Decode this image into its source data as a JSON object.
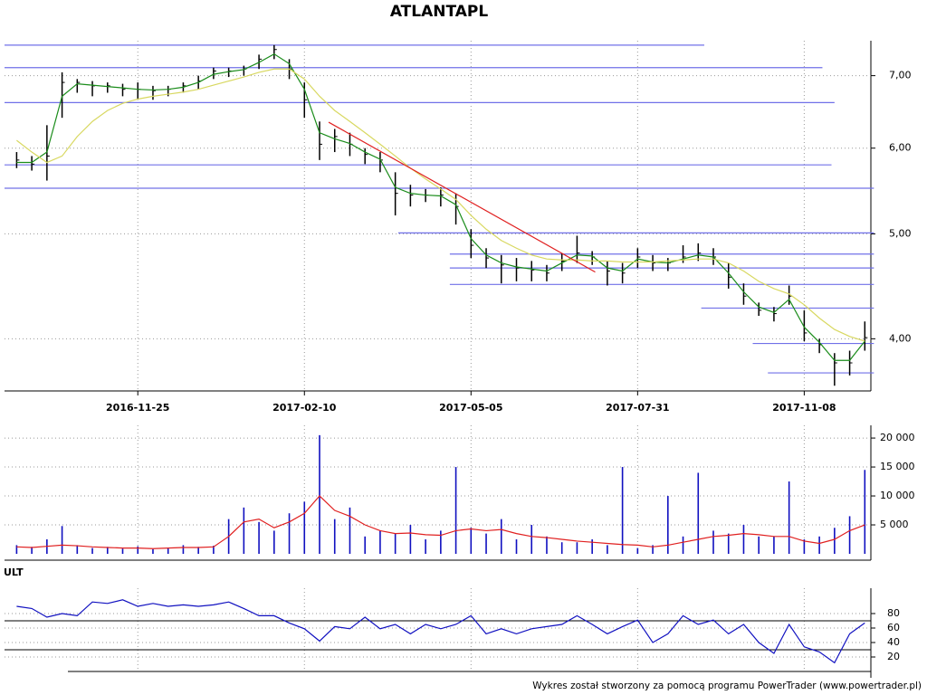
{
  "chart_data": [
    {
      "type": "ohlc",
      "title": "ATLANTAPL",
      "log_scale": true,
      "grid": true,
      "bar_color": "#000000",
      "x": [
        0,
        5,
        10,
        15,
        20,
        25,
        30,
        35,
        40,
        45,
        50,
        55,
        60,
        65,
        70,
        75,
        80,
        85,
        90,
        95,
        100,
        105,
        110,
        115,
        120,
        125,
        130,
        135,
        140,
        145,
        150,
        155,
        160,
        165,
        170,
        175,
        180,
        185,
        190,
        195,
        200,
        205,
        210,
        215,
        220,
        225,
        230,
        235,
        240,
        245,
        250,
        255,
        260,
        265,
        270,
        275,
        280
      ],
      "high": [
        5.95,
        5.9,
        6.3,
        7.05,
        6.95,
        6.92,
        6.9,
        6.88,
        6.9,
        6.85,
        6.85,
        6.9,
        7.0,
        7.12,
        7.12,
        7.15,
        7.32,
        7.47,
        7.25,
        6.9,
        6.35,
        6.25,
        6.2,
        6.0,
        5.95,
        5.7,
        5.55,
        5.5,
        5.52,
        5.45,
        5.05,
        4.85,
        4.78,
        4.75,
        4.72,
        4.68,
        4.8,
        4.98,
        4.82,
        4.72,
        4.7,
        4.85,
        4.78,
        4.75,
        4.88,
        4.9,
        4.85,
        4.7,
        4.5,
        4.32,
        4.28,
        4.48,
        4.25,
        4.0,
        3.88,
        3.9,
        4.15
      ],
      "low": [
        5.75,
        5.72,
        5.6,
        6.4,
        6.75,
        6.7,
        6.75,
        6.7,
        6.65,
        6.65,
        6.7,
        6.75,
        6.8,
        6.95,
        6.98,
        7.0,
        7.1,
        7.25,
        6.95,
        6.4,
        5.85,
        5.95,
        5.9,
        5.8,
        5.7,
        5.2,
        5.3,
        5.35,
        5.3,
        5.1,
        4.75,
        4.65,
        4.5,
        4.52,
        4.52,
        4.52,
        4.62,
        4.7,
        4.68,
        4.48,
        4.5,
        4.65,
        4.62,
        4.62,
        4.7,
        4.72,
        4.68,
        4.45,
        4.3,
        4.2,
        4.15,
        4.3,
        3.98,
        3.88,
        3.62,
        3.7,
        3.9
      ],
      "close": [
        5.85,
        5.8,
        5.9,
        6.9,
        6.9,
        6.85,
        6.85,
        6.8,
        6.8,
        6.78,
        6.8,
        6.85,
        6.92,
        7.07,
        7.07,
        7.1,
        7.25,
        7.4,
        7.1,
        6.65,
        6.05,
        6.15,
        6.05,
        5.92,
        5.85,
        5.45,
        5.43,
        5.43,
        5.43,
        5.3,
        4.88,
        4.75,
        4.68,
        4.65,
        4.63,
        4.6,
        4.72,
        4.8,
        4.76,
        4.62,
        4.6,
        4.76,
        4.7,
        4.7,
        4.76,
        4.8,
        4.76,
        4.56,
        4.38,
        4.25,
        4.22,
        4.38,
        4.05,
        3.95,
        3.8,
        3.8,
        4.01
      ],
      "lines": [
        {
          "color": "#1a8c1a",
          "values": [
            5.82,
            5.82,
            5.95,
            6.7,
            6.88,
            6.86,
            6.84,
            6.82,
            6.8,
            6.79,
            6.8,
            6.83,
            6.9,
            7.02,
            7.06,
            7.09,
            7.2,
            7.33,
            7.18,
            6.8,
            6.2,
            6.12,
            6.06,
            5.95,
            5.86,
            5.52,
            5.45,
            5.43,
            5.42,
            5.32,
            4.95,
            4.78,
            4.7,
            4.66,
            4.64,
            4.62,
            4.7,
            4.78,
            4.77,
            4.65,
            4.62,
            4.74,
            4.71,
            4.7,
            4.74,
            4.78,
            4.76,
            4.6,
            4.42,
            4.28,
            4.23,
            4.35,
            4.1,
            3.97,
            3.82,
            3.82,
            3.98
          ]
        },
        {
          "color": "#d8d860",
          "values": [
            6.1,
            5.95,
            5.82,
            5.9,
            6.15,
            6.35,
            6.5,
            6.6,
            6.66,
            6.7,
            6.73,
            6.76,
            6.8,
            6.86,
            6.92,
            6.98,
            7.05,
            7.1,
            7.1,
            6.95,
            6.7,
            6.5,
            6.35,
            6.2,
            6.05,
            5.9,
            5.75,
            5.62,
            5.5,
            5.38,
            5.2,
            5.05,
            4.93,
            4.85,
            4.78,
            4.74,
            4.73,
            4.73,
            4.72,
            4.72,
            4.71,
            4.71,
            4.71,
            4.72,
            4.73,
            4.74,
            4.74,
            4.7,
            4.62,
            4.52,
            4.45,
            4.4,
            4.3,
            4.18,
            4.08,
            4.02,
            3.98
          ]
        }
      ],
      "level_color": "#7070e8",
      "levels": [
        {
          "value": 7.47,
          "from": -4,
          "to": 227
        },
        {
          "value": 7.12,
          "from": -4,
          "to": 266
        },
        {
          "value": 6.61,
          "from": -4,
          "to": 270
        },
        {
          "value": 5.79,
          "from": -4,
          "to": 269
        },
        {
          "value": 5.51,
          "from": -4,
          "to": 283
        },
        {
          "value": 5.01,
          "from": 126,
          "to": 283
        },
        {
          "value": 4.79,
          "from": 143,
          "to": 283
        },
        {
          "value": 4.65,
          "from": 143,
          "to": 283
        },
        {
          "value": 4.49,
          "from": 143,
          "to": 283
        },
        {
          "value": 4.27,
          "from": 226,
          "to": 283
        },
        {
          "value": 3.96,
          "from": 243,
          "to": 283
        },
        {
          "value": 3.72,
          "from": 248,
          "to": 283
        }
      ],
      "trendline": {
        "color": "#e02020",
        "x": [
          103,
          191
        ],
        "values": [
          6.34,
          4.61
        ]
      },
      "xlim": [
        -4,
        282
      ],
      "ylim": [
        3.58,
        7.54
      ],
      "xticks": [
        {
          "value": 40,
          "label": "2016-11-25"
        },
        {
          "value": 95,
          "label": "2017-02-10"
        },
        {
          "value": 150,
          "label": "2017-05-05"
        },
        {
          "value": 205,
          "label": "2017-07-31"
        },
        {
          "value": 260,
          "label": "2017-11-08"
        }
      ],
      "yticks": [
        {
          "value": 4,
          "label": "4,00"
        },
        {
          "value": 5,
          "label": "5,00"
        },
        {
          "value": 6,
          "label": "6,00"
        },
        {
          "value": 7,
          "label": "7,00"
        }
      ]
    },
    {
      "type": "bar",
      "color": "#1010c0",
      "grid": true,
      "x": [
        0,
        5,
        10,
        15,
        20,
        25,
        30,
        35,
        40,
        45,
        50,
        55,
        60,
        65,
        70,
        75,
        80,
        85,
        90,
        95,
        100,
        105,
        110,
        115,
        120,
        125,
        130,
        135,
        140,
        145,
        150,
        155,
        160,
        165,
        170,
        175,
        180,
        185,
        190,
        195,
        200,
        205,
        210,
        215,
        220,
        225,
        230,
        235,
        240,
        245,
        250,
        255,
        260,
        265,
        270,
        275,
        280
      ],
      "values": [
        1500,
        1200,
        2500,
        4800,
        1500,
        1000,
        1200,
        900,
        1300,
        800,
        1000,
        1500,
        1200,
        1400,
        6000,
        8000,
        5500,
        4000,
        7000,
        9000,
        20500,
        6000,
        8000,
        3000,
        4000,
        3500,
        5000,
        2500,
        4000,
        15000,
        4500,
        3500,
        6000,
        2500,
        5000,
        3000,
        2000,
        2000,
        2500,
        1500,
        15000,
        1000,
        1500,
        10000,
        3000,
        14000,
        4000,
        3500,
        5000,
        3000,
        3000,
        12500,
        2500,
        3000,
        4500,
        6500,
        14500
      ],
      "lines": [
        {
          "color": "#e02020",
          "values": [
            1200,
            1100,
            1300,
            1500,
            1400,
            1200,
            1100,
            1000,
            1000,
            900,
            1000,
            1100,
            1100,
            1200,
            3000,
            5500,
            6000,
            4500,
            5500,
            7000,
            10000,
            7500,
            6500,
            5000,
            4000,
            3500,
            3600,
            3300,
            3200,
            4000,
            4300,
            4000,
            4200,
            3500,
            3000,
            2800,
            2500,
            2200,
            2000,
            1800,
            1600,
            1500,
            1200,
            1500,
            2000,
            2500,
            3000,
            3200,
            3500,
            3300,
            3000,
            3000,
            2200,
            1800,
            2500,
            4000,
            5000
          ]
        }
      ],
      "xlim": [
        -4,
        282
      ],
      "ylim": [
        0,
        22200
      ],
      "yticks": [
        {
          "value": 5000,
          "label": "5 000"
        },
        {
          "value": 10000,
          "label": "10 000"
        },
        {
          "value": 15000,
          "label": "15 000"
        },
        {
          "value": 20000,
          "label": "20 000"
        }
      ]
    },
    {
      "type": "line",
      "title": "ULT",
      "grid": true,
      "x": [
        0,
        5,
        10,
        15,
        20,
        25,
        30,
        35,
        40,
        45,
        50,
        55,
        60,
        65,
        70,
        75,
        80,
        85,
        90,
        95,
        100,
        105,
        110,
        115,
        120,
        125,
        130,
        135,
        140,
        145,
        150,
        155,
        160,
        165,
        170,
        175,
        180,
        185,
        190,
        195,
        200,
        205,
        210,
        215,
        220,
        225,
        230,
        235,
        240,
        245,
        250,
        255,
        260,
        265,
        270,
        275,
        280
      ],
      "series": [
        {
          "color": "#1010c0",
          "values": [
            90,
            87,
            75,
            80,
            77,
            96,
            94,
            99,
            90,
            94,
            90,
            92,
            90,
            92,
            96,
            87,
            77,
            77,
            67,
            59,
            42,
            62,
            59,
            75,
            59,
            65,
            52,
            65,
            59,
            65,
            77,
            52,
            59,
            52,
            59,
            62,
            65,
            77,
            65,
            52,
            62,
            71,
            40,
            52,
            77,
            65,
            71,
            52,
            65,
            40,
            25,
            65,
            34,
            27,
            12,
            52,
            67
          ]
        }
      ],
      "levels": [
        70,
        30
      ],
      "xlim": [
        -4,
        282
      ],
      "ylim": [
        0,
        115
      ],
      "yticks": [
        20,
        40,
        60,
        80
      ]
    }
  ],
  "footer": "Wykres został stworzony za pomocą programu PowerTrader (www.powertrader.pl)"
}
